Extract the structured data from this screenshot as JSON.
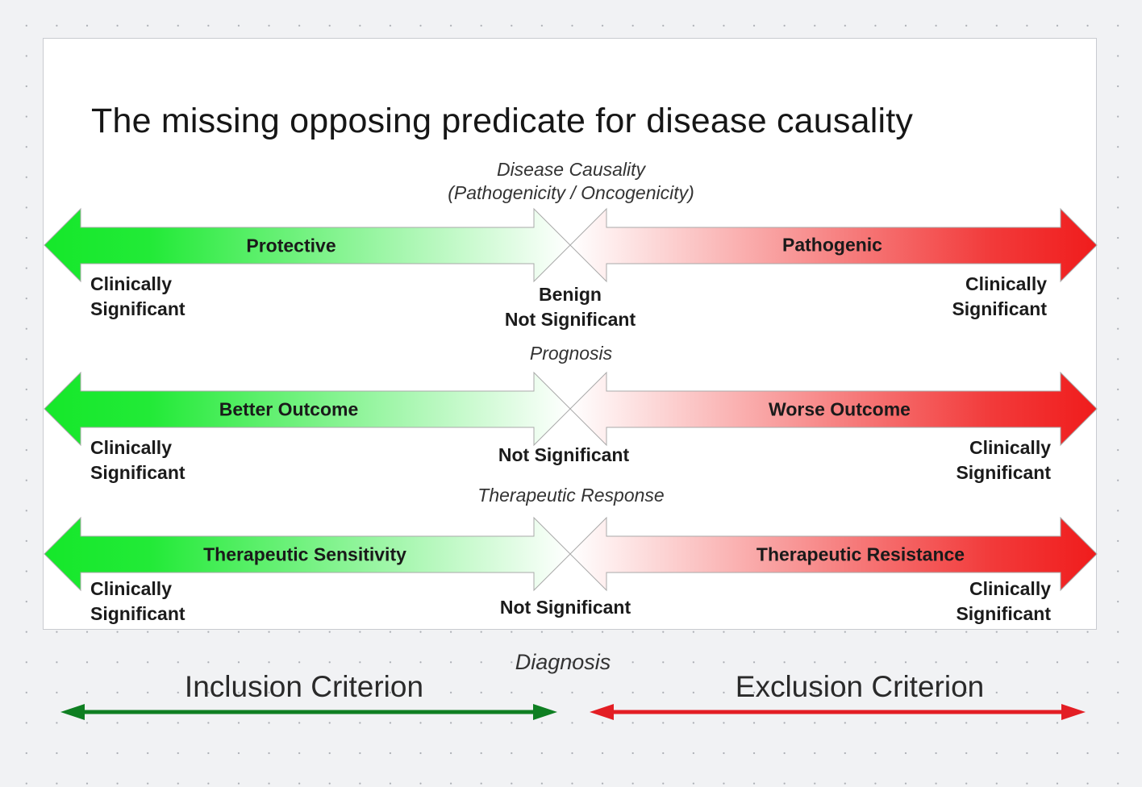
{
  "title": "The missing opposing predicate for disease causality",
  "colors": {
    "protective_green": "#15e82a",
    "pathogenic_red": "#f01c1c",
    "inclusion_arrow": "#0f7f22",
    "exclusion_arrow": "#e31e24"
  },
  "rows": [
    {
      "category_lines": [
        "Disease Causality",
        "(Pathogenicity / Oncogenicity)"
      ],
      "left_arrow_label": "Protective",
      "right_arrow_label": "Pathogenic",
      "left_lines": [
        "Clinically",
        "Significant"
      ],
      "right_lines": [
        "Clinically",
        "Significant"
      ],
      "center_lines": [
        "Benign",
        "Not Significant"
      ]
    },
    {
      "category_lines": [
        "Prognosis"
      ],
      "left_arrow_label": "Better Outcome",
      "right_arrow_label": "Worse Outcome",
      "left_lines": [
        "Clinically",
        "Significant"
      ],
      "right_lines": [
        "Clinically",
        "Significant"
      ],
      "center_lines": [
        "Not Significant"
      ]
    },
    {
      "category_lines": [
        "Therapeutic Response"
      ],
      "left_arrow_label": "Therapeutic Sensitivity",
      "right_arrow_label": "Therapeutic Resistance",
      "left_lines": [
        "Clinically",
        "Significant"
      ],
      "right_lines": [
        "Clinically",
        "Significant"
      ],
      "center_lines": [
        "Not Significant"
      ]
    }
  ],
  "footer": {
    "category": "Diagnosis",
    "inclusion_label": "Inclusion Criterion",
    "exclusion_label": "Exclusion Criterion"
  }
}
